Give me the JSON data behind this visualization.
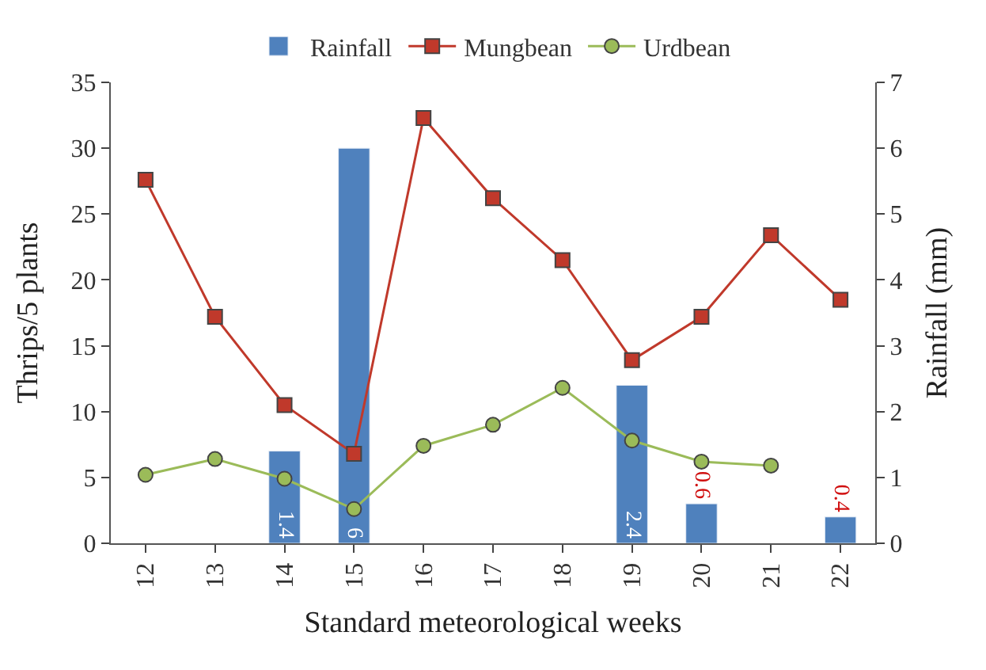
{
  "chart_data": {
    "type": "line",
    "xlabel": "Standard meteorological weeks",
    "ylabel": "Thrips/5 plants",
    "y2label": "Rainfall (mm)",
    "categories": [
      "12",
      "13",
      "14",
      "15",
      "16",
      "17",
      "18",
      "19",
      "20",
      "21",
      "22"
    ],
    "series": [
      {
        "name": "Rainfall",
        "type": "bar",
        "axis": "y2",
        "color": "#4f81bd",
        "values": [
          null,
          null,
          1.4,
          6,
          null,
          null,
          null,
          2.4,
          0.6,
          null,
          0.4
        ],
        "value_labels": [
          null,
          null,
          "1.4",
          "6",
          null,
          null,
          null,
          "2.4",
          "0.6",
          null,
          "0.4"
        ]
      },
      {
        "name": "Mungbean",
        "color": "#c0392b",
        "marker": "square",
        "values": [
          27.6,
          17.2,
          10.5,
          6.8,
          32.3,
          26.2,
          21.5,
          13.9,
          17.2,
          23.4,
          18.5
        ]
      },
      {
        "name": "Urdbean",
        "color": "#9bbb59",
        "marker": "circle",
        "values": [
          5.2,
          6.4,
          4.9,
          2.6,
          7.4,
          9.0,
          11.8,
          7.8,
          6.2,
          5.9,
          null
        ]
      }
    ],
    "ylim": [
      0,
      35
    ],
    "yticks": [
      0,
      5,
      10,
      15,
      20,
      25,
      30,
      35
    ],
    "y2lim": [
      0,
      7
    ],
    "y2ticks": [
      0,
      1,
      2,
      3,
      4,
      5,
      6,
      7
    ],
    "legend": "top"
  }
}
